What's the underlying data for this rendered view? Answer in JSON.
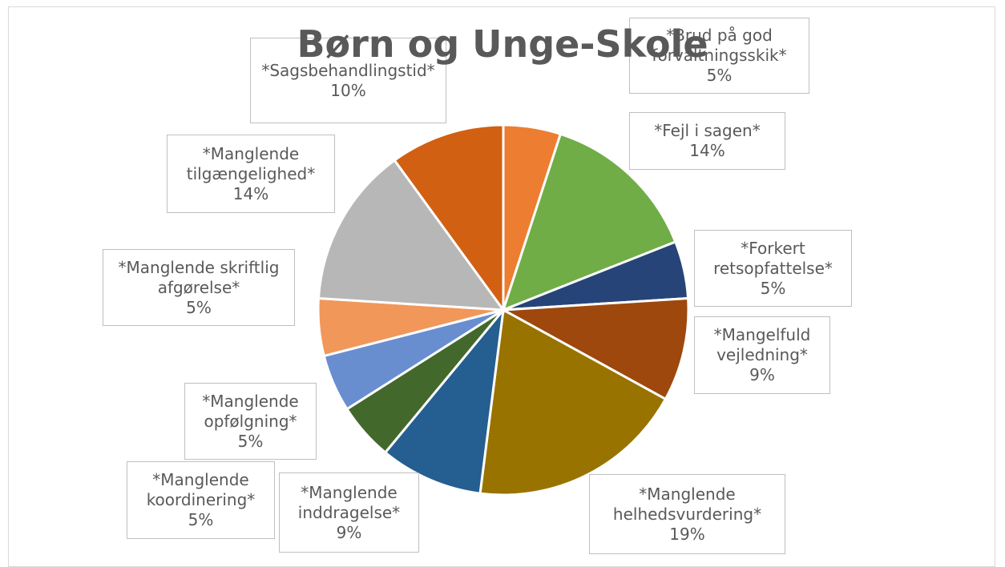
{
  "chart_data": {
    "type": "pie",
    "title": "Børn og Unge-Skole",
    "categories": [
      "*Brud på god forvaltningsskik*",
      "*Fejl i sagen*",
      "*Forkert retsopfattelse*",
      "*Mangelfuld vejledning*",
      "*Manglende helhedsvurdering*",
      "*Manglende inddragelse*",
      "*Manglende koordinering*",
      "*Manglende opfølgning*",
      "*Manglende skriftlig afgørelse*",
      "*Manglende tilgængelighed*",
      "*Sagsbehandlingstid*"
    ],
    "values": [
      5,
      14,
      5,
      9,
      19,
      9,
      5,
      5,
      5,
      14,
      10
    ],
    "value_labels": [
      "5%",
      "14%",
      "5%",
      "9%",
      "19%",
      "9%",
      "5%",
      "5%",
      "5%",
      "14%",
      "10%"
    ],
    "colors": [
      "#ed7d31",
      "#70ad47",
      "#264478",
      "#9e480e",
      "#997300",
      "#255e91",
      "#43682b",
      "#698ed0",
      "#f1975a",
      "#b7b7b7",
      "#d26012"
    ]
  }
}
